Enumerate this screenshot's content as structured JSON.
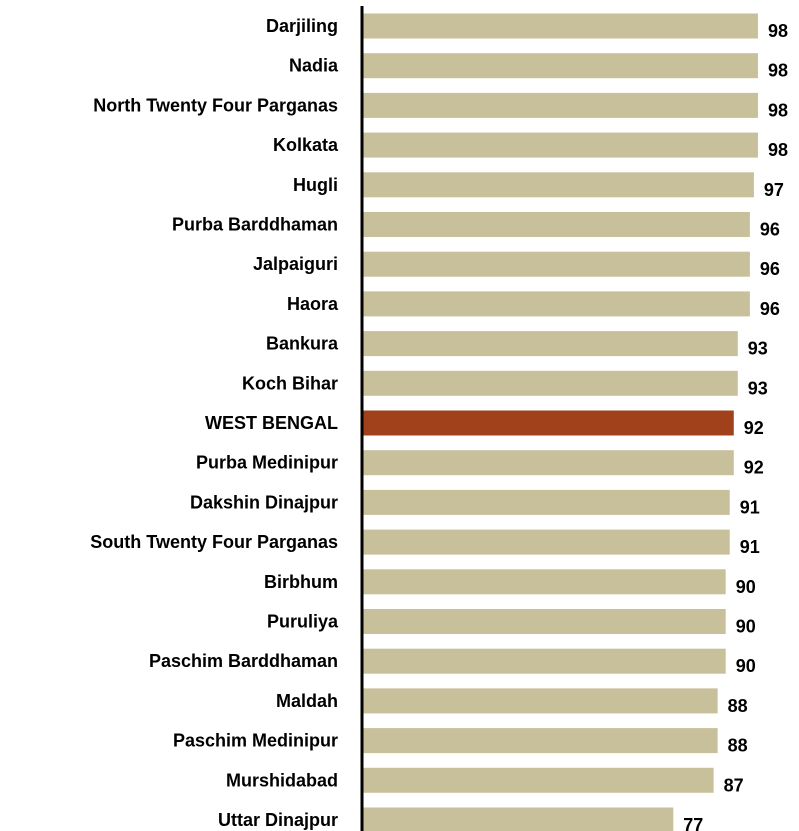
{
  "chart_data": {
    "type": "bar",
    "orientation": "horizontal",
    "title": "",
    "xlabel": "",
    "ylabel": "",
    "categories": [
      "Darjiling",
      "Nadia",
      "North Twenty Four Parganas",
      "Kolkata",
      "Hugli",
      "Purba Barddhaman",
      "Jalpaiguri",
      "Haora",
      "Bankura",
      "Koch Bihar",
      "WEST BENGAL",
      "Purba Medinipur",
      "Dakshin Dinajpur",
      "South Twenty Four Parganas",
      "Birbhum",
      "Puruliya",
      "Paschim Barddhaman",
      "Maldah",
      "Paschim Medinipur",
      "Murshidabad",
      "Uttar Dinajpur"
    ],
    "values": [
      98,
      98,
      98,
      98,
      97,
      96,
      96,
      96,
      93,
      93,
      92,
      92,
      91,
      91,
      90,
      90,
      90,
      88,
      88,
      87,
      77
    ],
    "value_labels": [
      "98",
      "98",
      "98",
      "98",
      "97",
      "96",
      "96",
      "96",
      "93",
      "93",
      "92",
      "92",
      "91",
      "91",
      "90",
      "90",
      "90",
      "88",
      "88",
      "87",
      "77"
    ],
    "highlight": "WEST BENGAL",
    "xlim": [
      0,
      100
    ],
    "grid": false,
    "legend": "none",
    "colors": {
      "bar": "#c8bf9b",
      "highlight": "#a0411c",
      "axis": "#000000",
      "text": "#000000"
    }
  }
}
